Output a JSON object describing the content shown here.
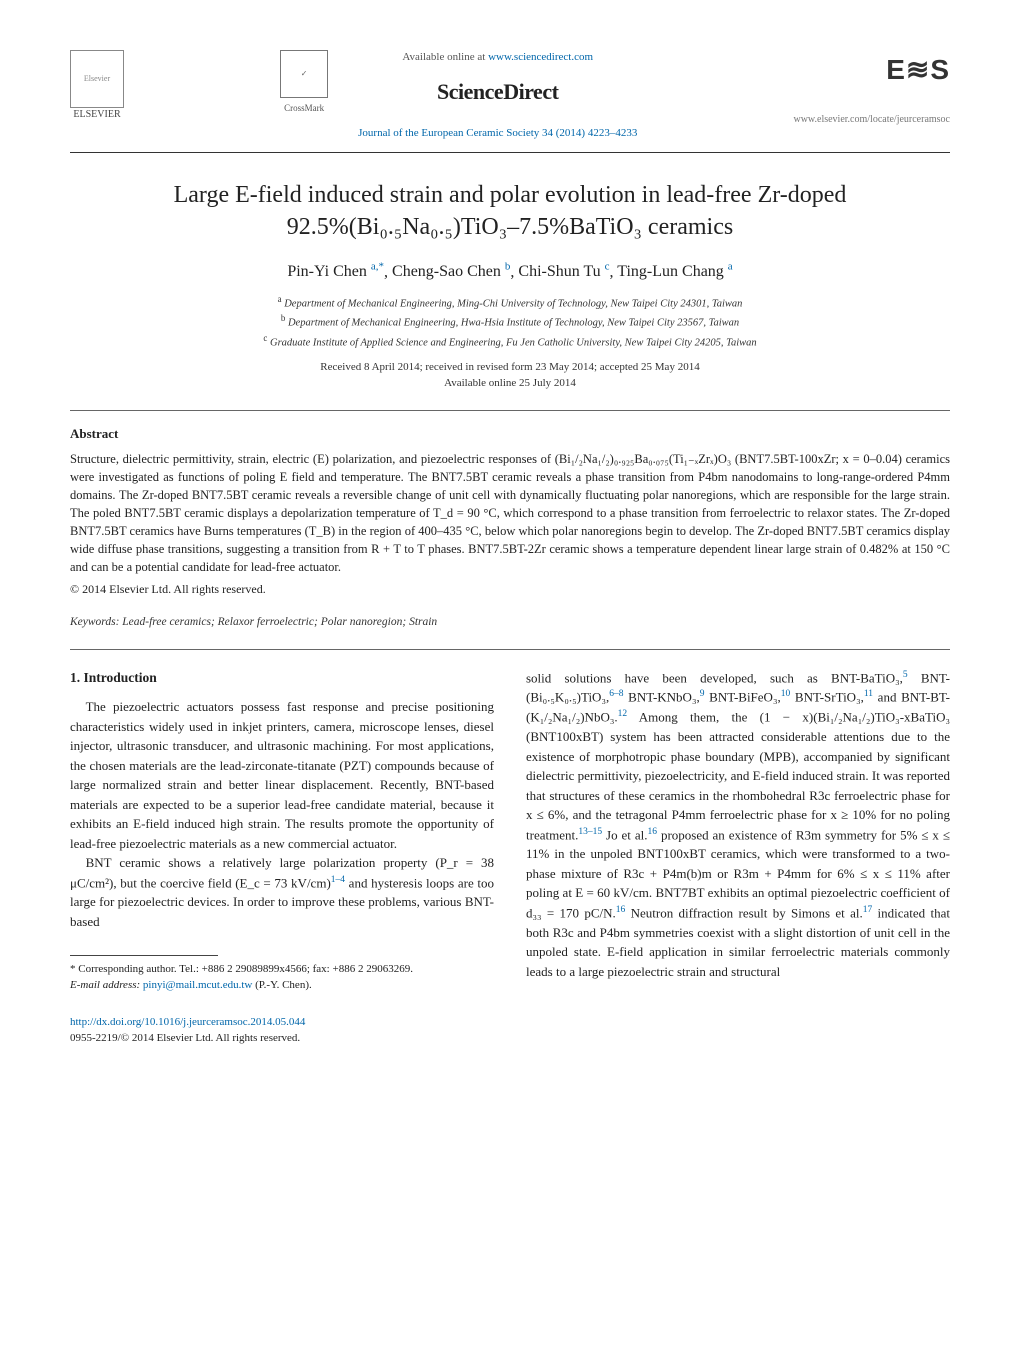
{
  "header": {
    "elsevier_label": "ELSEVIER",
    "crossmark_label": "CrossMark",
    "available_prefix": "Available online at ",
    "available_link": "www.sciencedirect.com",
    "brand": "ScienceDirect",
    "journal_citation": "Journal of the European Ceramic Society 34 (2014) 4223–4233",
    "society_logo": "E≋S",
    "site_url": "www.elsevier.com/locate/jeurceramsoc"
  },
  "title_line1": "Large E-field induced strain and polar evolution in lead-free Zr-doped",
  "title_line2": "92.5%(Bi₀.₅Na₀.₅)TiO₃–7.5%BaTiO₃ ceramics",
  "authors": [
    {
      "name": "Pin-Yi Chen",
      "marks": "a,*"
    },
    {
      "name": "Cheng-Sao Chen",
      "marks": "b"
    },
    {
      "name": "Chi-Shun Tu",
      "marks": "c"
    },
    {
      "name": "Ting-Lun Chang",
      "marks": "a"
    }
  ],
  "affiliations": [
    {
      "mark": "a",
      "text": "Department of Mechanical Engineering, Ming-Chi University of Technology, New Taipei City 24301, Taiwan"
    },
    {
      "mark": "b",
      "text": "Department of Mechanical Engineering, Hwa-Hsia Institute of Technology, New Taipei City 23567, Taiwan"
    },
    {
      "mark": "c",
      "text": "Graduate Institute of Applied Science and Engineering, Fu Jen Catholic University, New Taipei City 24205, Taiwan"
    }
  ],
  "dates_line1": "Received 8 April 2014; received in revised form 23 May 2014; accepted 25 May 2014",
  "dates_line2": "Available online 25 July 2014",
  "abstract_heading": "Abstract",
  "abstract_body": "Structure, dielectric permittivity, strain, electric (E) polarization, and piezoelectric responses of (Bi₁/₂Na₁/₂)₀.₉₂₅Ba₀.₀₇₅(Ti₁₋ₓZrₓ)O₃ (BNT7.5BT-100xZr; x = 0–0.04) ceramics were investigated as functions of poling E field and temperature. The BNT7.5BT ceramic reveals a phase transition from P4bm nanodomains to long-range-ordered P4mm domains. The Zr-doped BNT7.5BT ceramic reveals a reversible change of unit cell with dynamically fluctuating polar nanoregions, which are responsible for the large strain. The poled BNT7.5BT ceramic displays a depolarization temperature of T_d = 90 °C, which correspond to a phase transition from ferroelectric to relaxor states. The Zr-doped BNT7.5BT ceramics have Burns temperatures (T_B) in the region of 400–435 °C, below which polar nanoregions begin to develop. The Zr-doped BNT7.5BT ceramics display wide diffuse phase transitions, suggesting a transition from R + T to T phases. BNT7.5BT-2Zr ceramic shows a temperature dependent linear large strain of 0.482% at 150 °C and can be a potential candidate for lead-free actuator.",
  "copyright": "© 2014 Elsevier Ltd. All rights reserved.",
  "keywords_label": "Keywords:",
  "keywords_value": "Lead-free ceramics; Relaxor ferroelectric; Polar nanoregion; Strain",
  "intro_heading": "1. Introduction",
  "left_p1": "The piezoelectric actuators possess fast response and precise positioning characteristics widely used in inkjet printers, camera, microscope lenses, diesel injector, ultrasonic transducer, and ultrasonic machining. For most applications, the chosen materials are the lead-zirconate-titanate (PZT) compounds because of large normalized strain and better linear displacement. Recently, BNT-based materials are expected to be a superior lead-free candidate material, because it exhibits an E-field induced high strain. The results promote the opportunity of lead-free piezoelectric materials as a new commercial actuator.",
  "left_p2_a": "BNT ceramic shows a relatively large polarization property (P_r = 38 μC/cm²), but the coercive field (E_c = 73 kV/cm)",
  "left_p2_ref": "1–4",
  "left_p2_b": " and hysteresis loops are too large for piezoelectric devices. In order to improve these problems, various BNT-based",
  "right_p_a": "solid solutions have been developed, such as BNT-BaTiO₃,",
  "right_ref5": "5",
  "right_p_b": " BNT-(Bi₀.₅K₀.₅)TiO₃,",
  "right_ref68": "6–8",
  "right_p_c": " BNT-KNbO₃,",
  "right_ref9": "9",
  "right_p_d": " BNT-BiFeO₃,",
  "right_ref10": "10",
  "right_p_e": " BNT-SrTiO₃,",
  "right_ref11": "11",
  "right_p_f": " and BNT-BT-(K₁/₂Na₁/₂)NbO₃.",
  "right_ref12": "12",
  "right_p_g": " Among them, the (1 − x)(Bi₁/₂Na₁/₂)TiO₃-xBaTiO₃ (BNT100xBT) system has been attracted considerable attentions due to the existence of morphotropic phase boundary (MPB), accompanied by significant dielectric permittivity, piezoelectricity, and E-field induced strain. It was reported that structures of these ceramics in the rhombohedral R3c ferroelectric phase for x ≤ 6%, and the tetragonal P4mm ferroelectric phase for x ≥ 10% for no poling treatment.",
  "right_ref1315": "13–15",
  "right_p_h": " Jo et al.",
  "right_ref16a": "16",
  "right_p_i": " proposed an existence of R3m symmetry for 5% ≤ x ≤ 11% in the unpoled BNT100xBT ceramics, which were transformed to a two-phase mixture of R3c + P4m(b)m or R3m + P4mm for 6% ≤ x ≤ 11% after poling at E = 60 kV/cm. BNT7BT exhibits an optimal piezoelectric coefficient of d₃₃ = 170 pC/N.",
  "right_ref16b": "16",
  "right_p_j": " Neutron diffraction result by Simons et al.",
  "right_ref17": "17",
  "right_p_k": " indicated that both R3c and P4bm symmetries coexist with a slight distortion of unit cell in the unpoled state. E-field application in similar ferroelectric materials commonly leads to a large piezoelectric strain and structural",
  "footnote_label": "* Corresponding author. Tel.: +886 2 29089899x4566; fax: +886 2 29063269.",
  "footnote_email_label": "E-mail address:",
  "footnote_email": "pinyi@mail.mcut.edu.tw",
  "footnote_email_suffix": "(P.-Y. Chen).",
  "doi_link": "http://dx.doi.org/10.1016/j.jeurceramsoc.2014.05.044",
  "issn_line": "0955-2219/© 2014 Elsevier Ltd. All rights reserved.",
  "colors": {
    "link": "#0066aa",
    "text": "#222222",
    "rule": "#333333",
    "muted": "#555555"
  }
}
